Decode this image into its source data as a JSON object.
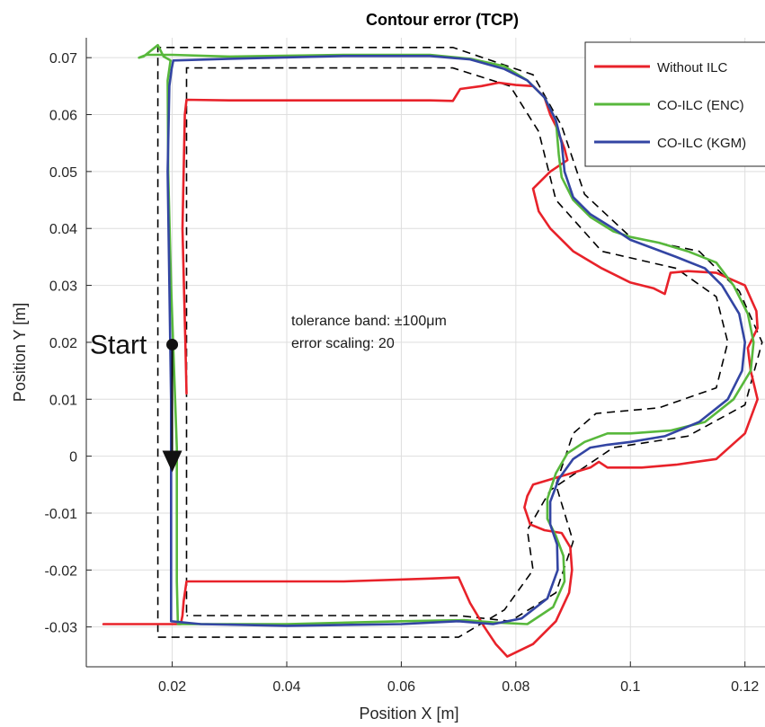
{
  "chart_data": {
    "type": "line",
    "title": "Contour error (TCP)",
    "xlabel": "Position X [m]",
    "ylabel": "Position Y [m]",
    "xlim": [
      0.005,
      0.1235
    ],
    "ylim": [
      -0.037,
      0.0735
    ],
    "xticks": [
      0.02,
      0.04,
      0.06,
      0.08,
      0.1,
      0.12
    ],
    "xtick_labels": [
      "0.02",
      "0.04",
      "0.06",
      "0.08",
      "0.1",
      "0.12"
    ],
    "yticks": [
      -0.03,
      -0.02,
      -0.01,
      0,
      0.01,
      0.02,
      0.03,
      0.04,
      0.05,
      0.06,
      0.07
    ],
    "ytick_labels": [
      "-0.03",
      "-0.02",
      "-0.01",
      "0",
      "0.01",
      "0.02",
      "0.03",
      "0.04",
      "0.05",
      "0.06",
      "0.07"
    ],
    "grid": true,
    "legend_position": "top-right",
    "annotations": {
      "line1": "tolerance band: ±100μm",
      "line2": "error scaling: 20",
      "start_label": "Start",
      "start_point": [
        0.02,
        0.0196
      ],
      "arrow_end": [
        0.02,
        -0.0025
      ]
    },
    "tolerance_band": {
      "color": "#000000",
      "outer": [
        [
          0.0175,
          -0.0285
        ],
        [
          0.0175,
          0.0718
        ],
        [
          0.069,
          0.0718
        ],
        [
          0.083,
          0.067
        ],
        [
          0.088,
          0.058
        ],
        [
          0.092,
          0.046
        ],
        [
          0.1,
          0.0385
        ],
        [
          0.112,
          0.036
        ],
        [
          0.119,
          0.029
        ],
        [
          0.123,
          0.02
        ],
        [
          0.12,
          0.009
        ],
        [
          0.11,
          0.0035
        ],
        [
          0.097,
          0.0015
        ],
        [
          0.086,
          -0.006
        ],
        [
          0.082,
          -0.013
        ],
        [
          0.083,
          -0.02
        ],
        [
          0.078,
          -0.027
        ],
        [
          0.07,
          -0.0318
        ],
        [
          0.0175,
          -0.0318
        ],
        [
          0.0175,
          -0.0285
        ]
      ],
      "inner": [
        [
          0.0225,
          -0.0275
        ],
        [
          0.0225,
          0.0682
        ],
        [
          0.069,
          0.0682
        ],
        [
          0.079,
          0.065
        ],
        [
          0.084,
          0.057
        ],
        [
          0.087,
          0.045
        ],
        [
          0.095,
          0.036
        ],
        [
          0.108,
          0.033
        ],
        [
          0.115,
          0.028
        ],
        [
          0.117,
          0.02
        ],
        [
          0.115,
          0.012
        ],
        [
          0.105,
          0.0085
        ],
        [
          0.094,
          0.0075
        ],
        [
          0.09,
          0.004
        ],
        [
          0.087,
          -0.005
        ],
        [
          0.09,
          -0.015
        ],
        [
          0.087,
          -0.024
        ],
        [
          0.079,
          -0.029
        ],
        [
          0.07,
          -0.028
        ],
        [
          0.0225,
          -0.028
        ]
      ]
    },
    "series": [
      {
        "name": "Without ILC",
        "color": "#e8222a",
        "points": [
          [
            0.0225,
            0.011
          ],
          [
            0.0223,
            0.02
          ],
          [
            0.0218,
            0.04
          ],
          [
            0.0222,
            0.06
          ],
          [
            0.0225,
            0.0626
          ],
          [
            0.03,
            0.0625
          ],
          [
            0.05,
            0.0625
          ],
          [
            0.065,
            0.0625
          ],
          [
            0.069,
            0.0624
          ],
          [
            0.0703,
            0.0645
          ],
          [
            0.074,
            0.065
          ],
          [
            0.077,
            0.0656
          ],
          [
            0.08,
            0.0652
          ],
          [
            0.083,
            0.065
          ],
          [
            0.085,
            0.063
          ],
          [
            0.086,
            0.06
          ],
          [
            0.087,
            0.058
          ],
          [
            0.0885,
            0.054
          ],
          [
            0.089,
            0.052
          ],
          [
            0.086,
            0.05
          ],
          [
            0.083,
            0.047
          ],
          [
            0.084,
            0.043
          ],
          [
            0.086,
            0.04
          ],
          [
            0.09,
            0.036
          ],
          [
            0.095,
            0.033
          ],
          [
            0.1,
            0.0305
          ],
          [
            0.104,
            0.0295
          ],
          [
            0.106,
            0.0285
          ],
          [
            0.107,
            0.0322
          ],
          [
            0.11,
            0.0325
          ],
          [
            0.115,
            0.0322
          ],
          [
            0.12,
            0.03
          ],
          [
            0.122,
            0.0255
          ],
          [
            0.1222,
            0.0225
          ],
          [
            0.1205,
            0.019
          ],
          [
            0.121,
            0.015
          ],
          [
            0.1222,
            0.01
          ],
          [
            0.12,
            0.004
          ],
          [
            0.115,
            -0.0005
          ],
          [
            0.108,
            -0.0015
          ],
          [
            0.102,
            -0.002
          ],
          [
            0.096,
            -0.002
          ],
          [
            0.0945,
            -0.001
          ],
          [
            0.093,
            -0.002
          ],
          [
            0.088,
            -0.0035
          ],
          [
            0.083,
            -0.005
          ],
          [
            0.082,
            -0.007
          ],
          [
            0.0815,
            -0.009
          ],
          [
            0.0825,
            -0.012
          ],
          [
            0.085,
            -0.013
          ],
          [
            0.088,
            -0.0135
          ],
          [
            0.0895,
            -0.016
          ],
          [
            0.0898,
            -0.02
          ],
          [
            0.0893,
            -0.024
          ],
          [
            0.087,
            -0.029
          ],
          [
            0.083,
            -0.033
          ],
          [
            0.0785,
            -0.0352
          ],
          [
            0.0765,
            -0.033
          ],
          [
            0.0745,
            -0.03
          ],
          [
            0.072,
            -0.0258
          ],
          [
            0.07,
            -0.0213
          ],
          [
            0.065,
            -0.0215
          ],
          [
            0.05,
            -0.022
          ],
          [
            0.035,
            -0.022
          ],
          [
            0.0225,
            -0.022
          ],
          [
            0.022,
            -0.0255
          ],
          [
            0.0218,
            -0.028
          ],
          [
            0.0215,
            -0.0295
          ],
          [
            0.015,
            -0.0295
          ],
          [
            0.008,
            -0.0295
          ]
        ]
      },
      {
        "name": "CO-ILC (ENC)",
        "color": "#58b83c",
        "points": [
          [
            0.0208,
            0.0015
          ],
          [
            0.0205,
            0.01
          ],
          [
            0.0198,
            0.03
          ],
          [
            0.0193,
            0.05
          ],
          [
            0.0192,
            0.066
          ],
          [
            0.0197,
            0.0695
          ],
          [
            0.0185,
            0.0702
          ],
          [
            0.0175,
            0.0722
          ],
          [
            0.015,
            0.0702
          ],
          [
            0.0142,
            0.07
          ],
          [
            0.0155,
            0.0705
          ],
          [
            0.02,
            0.0705
          ],
          [
            0.03,
            0.0702
          ],
          [
            0.05,
            0.0705
          ],
          [
            0.065,
            0.0705
          ],
          [
            0.072,
            0.0698
          ],
          [
            0.078,
            0.0685
          ],
          [
            0.082,
            0.066
          ],
          [
            0.085,
            0.063
          ],
          [
            0.087,
            0.059
          ],
          [
            0.0875,
            0.053
          ],
          [
            0.088,
            0.049
          ],
          [
            0.09,
            0.045
          ],
          [
            0.093,
            0.042
          ],
          [
            0.097,
            0.0395
          ],
          [
            0.1,
            0.0385
          ],
          [
            0.105,
            0.0375
          ],
          [
            0.11,
            0.036
          ],
          [
            0.115,
            0.034
          ],
          [
            0.118,
            0.03
          ],
          [
            0.1205,
            0.025
          ],
          [
            0.1215,
            0.02
          ],
          [
            0.121,
            0.015
          ],
          [
            0.118,
            0.01
          ],
          [
            0.113,
            0.006
          ],
          [
            0.107,
            0.0045
          ],
          [
            0.1,
            0.004
          ],
          [
            0.096,
            0.004
          ],
          [
            0.092,
            0.0025
          ],
          [
            0.089,
            0.0005
          ],
          [
            0.087,
            -0.003
          ],
          [
            0.0855,
            -0.0075
          ],
          [
            0.0855,
            -0.011
          ],
          [
            0.087,
            -0.014
          ],
          [
            0.0883,
            -0.0175
          ],
          [
            0.0885,
            -0.022
          ],
          [
            0.0865,
            -0.0265
          ],
          [
            0.082,
            -0.0295
          ],
          [
            0.076,
            -0.0292
          ],
          [
            0.071,
            -0.0288
          ],
          [
            0.06,
            -0.029
          ],
          [
            0.04,
            -0.0295
          ],
          [
            0.025,
            -0.0295
          ],
          [
            0.021,
            -0.0295
          ],
          [
            0.0208,
            -0.022
          ],
          [
            0.0208,
            -0.01
          ],
          [
            0.0208,
            0.0015
          ]
        ]
      },
      {
        "name": "CO-ILC (KGM)",
        "color": "#3345a3",
        "points": [
          [
            0.0198,
            -0.029
          ],
          [
            0.0198,
            -0.01
          ],
          [
            0.0198,
            0.01
          ],
          [
            0.0195,
            0.03
          ],
          [
            0.0192,
            0.05
          ],
          [
            0.0195,
            0.065
          ],
          [
            0.0199,
            0.068
          ],
          [
            0.0202,
            0.0695
          ],
          [
            0.03,
            0.0698
          ],
          [
            0.05,
            0.0703
          ],
          [
            0.065,
            0.0703
          ],
          [
            0.072,
            0.0697
          ],
          [
            0.078,
            0.068
          ],
          [
            0.082,
            0.066
          ],
          [
            0.085,
            0.063
          ],
          [
            0.087,
            0.059
          ],
          [
            0.088,
            0.055
          ],
          [
            0.0885,
            0.05
          ],
          [
            0.09,
            0.0455
          ],
          [
            0.093,
            0.0425
          ],
          [
            0.097,
            0.04
          ],
          [
            0.1,
            0.038
          ],
          [
            0.104,
            0.0365
          ],
          [
            0.108,
            0.035
          ],
          [
            0.113,
            0.033
          ],
          [
            0.116,
            0.03
          ],
          [
            0.119,
            0.025
          ],
          [
            0.12,
            0.02
          ],
          [
            0.1195,
            0.015
          ],
          [
            0.117,
            0.01
          ],
          [
            0.112,
            0.006
          ],
          [
            0.106,
            0.0035
          ],
          [
            0.1,
            0.0025
          ],
          [
            0.096,
            0.002
          ],
          [
            0.093,
            0.0015
          ],
          [
            0.09,
            -0.0005
          ],
          [
            0.0875,
            -0.004
          ],
          [
            0.086,
            -0.008
          ],
          [
            0.086,
            -0.012
          ],
          [
            0.0872,
            -0.0155
          ],
          [
            0.0873,
            -0.02
          ],
          [
            0.0855,
            -0.025
          ],
          [
            0.081,
            -0.0285
          ],
          [
            0.076,
            -0.0295
          ],
          [
            0.07,
            -0.029
          ],
          [
            0.06,
            -0.0295
          ],
          [
            0.04,
            -0.0298
          ],
          [
            0.025,
            -0.0295
          ],
          [
            0.0198,
            -0.029
          ]
        ]
      }
    ]
  }
}
